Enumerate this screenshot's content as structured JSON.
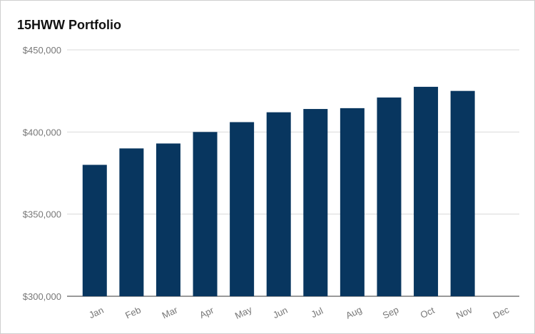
{
  "chart_data": {
    "type": "bar",
    "title": "15HWW Portfolio",
    "xlabel": "",
    "ylabel": "",
    "categories": [
      "Jan",
      "Feb",
      "Mar",
      "Apr",
      "May",
      "Jun",
      "Jul",
      "Aug",
      "Sep",
      "Oct",
      "Nov",
      "Dec"
    ],
    "values": [
      380000,
      390000,
      393000,
      400000,
      406000,
      412000,
      414000,
      414500,
      421000,
      427500,
      425000,
      null
    ],
    "ylim": [
      300000,
      450000
    ],
    "yticks": [
      300000,
      350000,
      400000,
      450000
    ],
    "ytick_labels": [
      "$300,000",
      "$350,000",
      "$400,000",
      "$450,000"
    ],
    "grid": true,
    "legend": "none",
    "bar_color": "#08365f",
    "grid_color": "#d9d9d9"
  }
}
